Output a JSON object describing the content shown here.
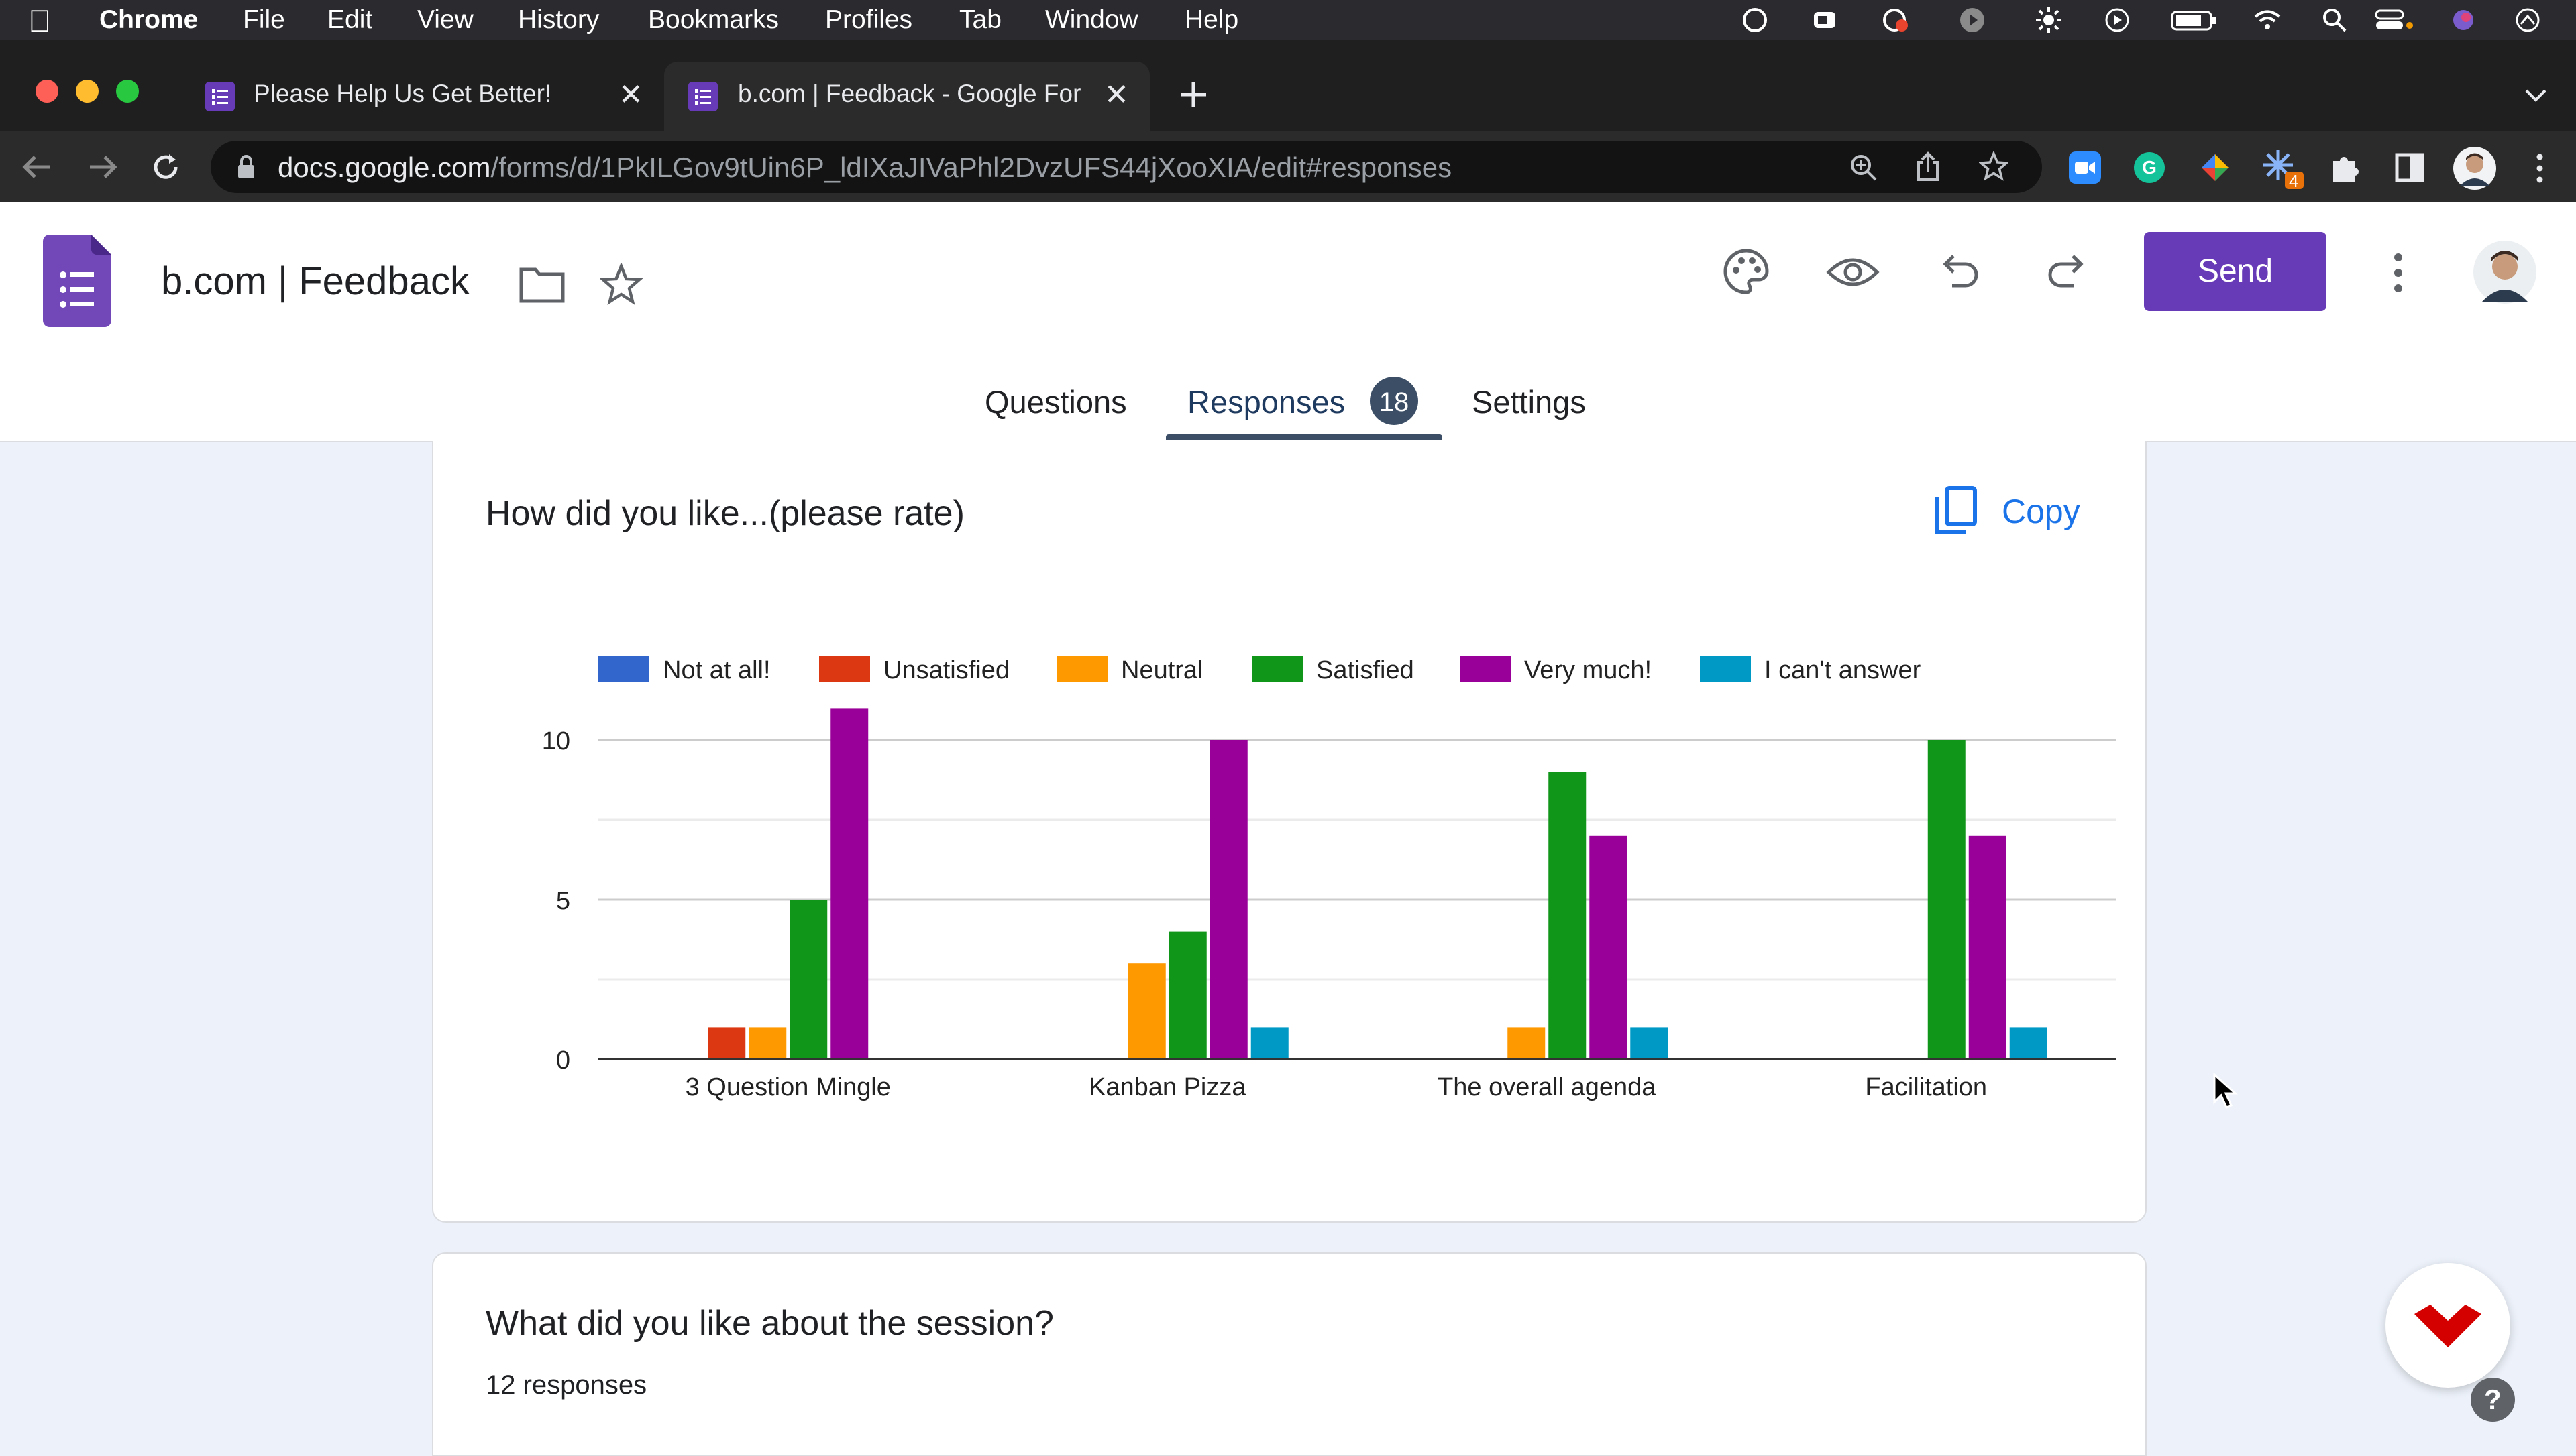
{
  "menubar": {
    "app": "Chrome",
    "items": [
      "File",
      "Edit",
      "View",
      "History",
      "Bookmarks",
      "Profiles",
      "Tab",
      "Window",
      "Help"
    ]
  },
  "browser": {
    "tabs": [
      {
        "title": "Please Help Us Get Better!"
      },
      {
        "title": "b.com | Feedback - Google For"
      }
    ],
    "url_host": "docs.google.com",
    "url_path": "/forms/d/1PkILGov9tUin6P_ldIXaJIVaPhl2DvzUFS44jXooXIA/edit#responses",
    "extension_badge": "4"
  },
  "header": {
    "title": "b.com | Feedback",
    "send_label": "Send",
    "tabs": {
      "questions": "Questions",
      "responses": "Responses",
      "responses_count": "18",
      "settings": "Settings"
    }
  },
  "question1": {
    "title": "How did you like...(please rate)",
    "copy_label": "Copy"
  },
  "question2": {
    "title": "What did you like about the session?",
    "responses": "12 responses"
  },
  "colors": {
    "accent": "#673ab7",
    "link": "#1a73e8"
  },
  "chart_data": {
    "type": "bar",
    "categories": [
      "3 Question Mingle",
      "Kanban Pizza",
      "The overall agenda",
      "Facilitation"
    ],
    "series": [
      {
        "name": "Not at all!",
        "color": "#3366cc",
        "values": [
          0,
          0,
          0,
          0
        ]
      },
      {
        "name": "Unsatisfied",
        "color": "#dc3912",
        "values": [
          1,
          0,
          0,
          0
        ]
      },
      {
        "name": "Neutral",
        "color": "#ff9900",
        "values": [
          1,
          3,
          1,
          0
        ]
      },
      {
        "name": "Satisfied",
        "color": "#109618",
        "values": [
          5,
          4,
          9,
          10
        ]
      },
      {
        "name": "Very much!",
        "color": "#990099",
        "values": [
          11,
          10,
          7,
          7
        ]
      },
      {
        "name": "I can't answer",
        "color": "#0099c6",
        "values": [
          0,
          1,
          1,
          1
        ]
      }
    ],
    "yticks": [
      0,
      5,
      10
    ],
    "ylim": [
      0,
      12
    ],
    "grid": true,
    "legend": "top"
  }
}
